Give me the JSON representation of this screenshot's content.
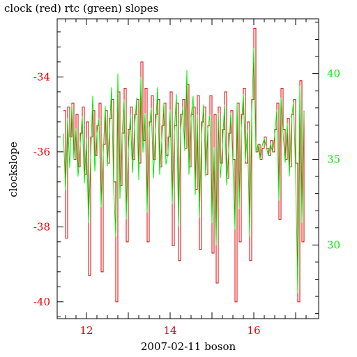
{
  "colors": {
    "clock": "#e00000",
    "rtc": "#00ee00",
    "axis": "#000000",
    "background": "#ffffff"
  },
  "chart_data": {
    "type": "line",
    "title": "clock (red) rtc (green) slopes",
    "xlabel": "2007-02-11 boson",
    "ylabel": "clockslope",
    "xlim": [
      11.3,
      17.55
    ],
    "ylim_left": [
      -40.45,
      -32.45
    ],
    "ylim_right": [
      25.7,
      43.2
    ],
    "x_ticks": [
      "12",
      "14",
      "16"
    ],
    "y_ticks_left": [
      "-34",
      "-36",
      "-38",
      "-40"
    ],
    "y_ticks_right": [
      "40",
      "35",
      "30"
    ],
    "series": [
      {
        "name": "clock",
        "axis": "left",
        "x": [
          11.45,
          11.5,
          11.55,
          11.6,
          11.65,
          11.7,
          11.75,
          11.8,
          11.85,
          11.9,
          11.95,
          12.0,
          12.05,
          12.1,
          12.15,
          12.2,
          12.25,
          12.3,
          12.35,
          12.4,
          12.45,
          12.5,
          12.55,
          12.6,
          12.65,
          12.7,
          12.75,
          12.8,
          12.85,
          12.9,
          12.95,
          13.0,
          13.05,
          13.1,
          13.15,
          13.2,
          13.25,
          13.3,
          13.35,
          13.4,
          13.45,
          13.5,
          13.55,
          13.6,
          13.65,
          13.7,
          13.75,
          13.8,
          13.85,
          13.9,
          13.95,
          14.0,
          14.05,
          14.1,
          14.15,
          14.2,
          14.25,
          14.3,
          14.35,
          14.4,
          14.45,
          14.5,
          14.55,
          14.6,
          14.65,
          14.7,
          14.75,
          14.8,
          14.85,
          14.9,
          14.95,
          15.0,
          15.05,
          15.1,
          15.15,
          15.2,
          15.25,
          15.3,
          15.35,
          15.4,
          15.45,
          15.5,
          15.55,
          15.6,
          15.65,
          15.7,
          15.75,
          15.8,
          15.85,
          15.9,
          15.95,
          16.0,
          16.05,
          16.1,
          16.15,
          16.2,
          16.25,
          16.3,
          16.35,
          16.4,
          16.45,
          16.5,
          16.55,
          16.6,
          16.65,
          16.7,
          16.75,
          16.8,
          16.85,
          16.9,
          16.95,
          17.0,
          17.05,
          17.1,
          17.15,
          17.2
        ],
        "y": [
          -34.9,
          -38.3,
          -34.8,
          -35.6,
          -34.7,
          -36.2,
          -35.0,
          -36.4,
          -35.5,
          -34.8,
          -36.6,
          -35.2,
          -39.3,
          -35.6,
          -34.9,
          -36.1,
          -35.3,
          -34.7,
          -39.2,
          -35.8,
          -34.9,
          -36.3,
          -35.1,
          -34.6,
          -36.8,
          -40.0,
          -34.4,
          -36.9,
          -35.5,
          -34.3,
          -38.4,
          -35.4,
          -34.8,
          -36.2,
          -35.0,
          -34.6,
          -36.3,
          -33.6,
          -35.7,
          -34.3,
          -38.4,
          -35.2,
          -34.5,
          -36.2,
          -35.0,
          -34.6,
          -36.4,
          -35.3,
          -34.7,
          -36.1,
          -35.6,
          -34.4,
          -38.5,
          -35.3,
          -34.7,
          -38.9,
          -35.0,
          -34.6,
          -35.9,
          -34.2,
          -36.4,
          -35.0,
          -34.8,
          -37.0,
          -34.5,
          -38.6,
          -35.2,
          -34.8,
          -36.6,
          -35.3,
          -34.5,
          -38.7,
          -35.0,
          -39.5,
          -34.8,
          -36.3,
          -35.4,
          -34.4,
          -36.7,
          -35.5,
          -34.9,
          -36.2,
          -40.0,
          -34.7,
          -38.4,
          -35.0,
          -34.3,
          -36.3,
          -35.2,
          -38.9,
          -34.6,
          -32.7,
          -36.0,
          -35.8,
          -36.2,
          -35.9,
          -35.6,
          -35.9,
          -36.1,
          -35.7,
          -36.0,
          -35.4,
          -34.7,
          -37.8,
          -34.3,
          -35.4,
          -36.2,
          -35.1,
          -36.4,
          -35.0,
          -34.6,
          -36.3,
          -40.0,
          -34.1,
          -38.4,
          -34.9
        ]
      },
      {
        "name": "rtc",
        "axis": "right",
        "x": [
          11.45,
          11.5,
          11.55,
          11.6,
          11.65,
          11.7,
          11.75,
          11.8,
          11.85,
          11.9,
          11.95,
          12.0,
          12.05,
          12.1,
          12.15,
          12.2,
          12.25,
          12.3,
          12.35,
          12.4,
          12.45,
          12.5,
          12.55,
          12.6,
          12.65,
          12.7,
          12.75,
          12.8,
          12.85,
          12.9,
          12.95,
          13.0,
          13.05,
          13.1,
          13.15,
          13.2,
          13.25,
          13.3,
          13.35,
          13.4,
          13.45,
          13.5,
          13.55,
          13.6,
          13.65,
          13.7,
          13.75,
          13.8,
          13.85,
          13.9,
          13.95,
          14.0,
          14.05,
          14.1,
          14.15,
          14.2,
          14.25,
          14.3,
          14.35,
          14.4,
          14.45,
          14.5,
          14.55,
          14.6,
          14.65,
          14.7,
          14.75,
          14.8,
          14.85,
          14.9,
          14.95,
          15.0,
          15.05,
          15.1,
          15.15,
          15.2,
          15.25,
          15.3,
          15.35,
          15.4,
          15.45,
          15.5,
          15.55,
          15.6,
          15.65,
          15.7,
          15.75,
          15.8,
          15.85,
          15.9,
          15.95,
          16.0,
          16.05,
          16.1,
          16.15,
          16.2,
          16.25,
          16.3,
          16.35,
          16.4,
          16.45,
          16.5,
          16.55,
          16.6,
          16.65,
          16.7,
          16.75,
          16.8,
          16.85,
          16.9,
          16.95,
          17.0,
          17.05,
          17.1,
          17.15,
          17.2
        ],
        "y": [
          36.5,
          33.2,
          37.4,
          34.5,
          38.2,
          35.0,
          36.8,
          34.0,
          35.9,
          37.5,
          33.6,
          36.2,
          31.3,
          35.1,
          38.7,
          34.3,
          36.5,
          37.4,
          32.2,
          35.3,
          38.1,
          34.6,
          36.7,
          39.2,
          33.3,
          30.5,
          40.0,
          32.7,
          36.4,
          38.5,
          31.5,
          35.5,
          37.6,
          34.2,
          36.9,
          38.6,
          33.8,
          39.8,
          35.4,
          37.7,
          31.9,
          36.8,
          38.0,
          33.9,
          36.7,
          39.2,
          34.1,
          36.1,
          38.3,
          34.7,
          35.4,
          37.9,
          32.4,
          36.6,
          38.8,
          31.1,
          36.7,
          38.0,
          35.5,
          40.2,
          34.1,
          37.4,
          38.7,
          32.9,
          37.6,
          31.6,
          36.4,
          38.2,
          34.0,
          36.8,
          37.6,
          31.3,
          35.7,
          30.0,
          37.7,
          33.9,
          35.8,
          38.2,
          33.5,
          35.5,
          37.7,
          34.8,
          30.9,
          38.3,
          32.1,
          36.8,
          38.8,
          34.9,
          36.7,
          30.5,
          37.6,
          41.5,
          35.4,
          35.9,
          35.0,
          35.8,
          36.2,
          35.7,
          35.2,
          35.9,
          35.4,
          36.4,
          37.9,
          32.6,
          38.6,
          36.5,
          34.8,
          37.1,
          34.0,
          37.4,
          38.3,
          34.1,
          27.2,
          39.3,
          31.3,
          37.8
        ]
      }
    ]
  }
}
